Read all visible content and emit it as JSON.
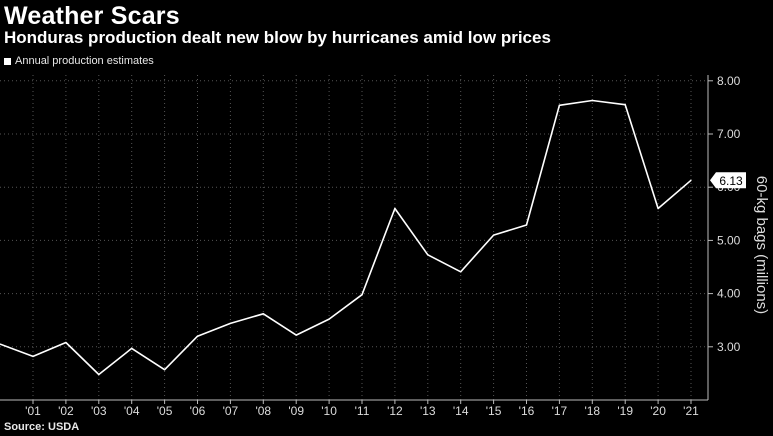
{
  "title": "Weather Scars",
  "subtitle": "Honduras production dealt new blow by hurricanes amid low prices",
  "legend_label": "Annual production estimates",
  "source": "Source: USDA",
  "colors": {
    "background": "#000000",
    "line": "#ffffff",
    "grid": "#555555"
  },
  "chart_data": {
    "type": "line",
    "title": "Weather Scars",
    "subtitle": "Honduras production dealt new blow by hurricanes amid low prices",
    "ylabel": "60-kg bags (millions)",
    "xlabel": "",
    "x_ticks": [
      "'01",
      "'02",
      "'03",
      "'04",
      "'05",
      "'06",
      "'07",
      "'08",
      "'09",
      "'10",
      "'11",
      "'12",
      "'13",
      "'14",
      "'15",
      "'16",
      "'17",
      "'18",
      "'19",
      "'20",
      "'21"
    ],
    "y_ticks": [
      "3.00",
      "4.00",
      "5.00",
      "6.00",
      "7.00",
      "8.00"
    ],
    "ylim": [
      2.0,
      8.0
    ],
    "xlim": [
      2000,
      2021.5
    ],
    "grid": true,
    "y_axis_side": "right",
    "series": [
      {
        "name": "Annual production estimates",
        "x": [
          2000,
          2001,
          2002,
          2003,
          2004,
          2005,
          2006,
          2007,
          2008,
          2009,
          2010,
          2011,
          2012,
          2013,
          2014,
          2015,
          2016,
          2017,
          2018,
          2019,
          2020,
          2021
        ],
        "values": [
          3.05,
          2.82,
          3.08,
          2.48,
          2.97,
          2.57,
          3.2,
          3.44,
          3.62,
          3.22,
          3.52,
          3.98,
          5.6,
          4.73,
          4.41,
          5.1,
          5.29,
          7.54,
          7.63,
          7.55,
          5.6,
          6.13
        ]
      }
    ],
    "last_value_label": "6.13"
  }
}
